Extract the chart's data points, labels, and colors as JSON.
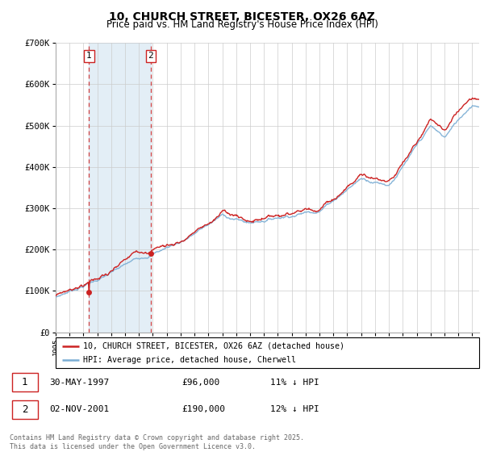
{
  "title1": "10, CHURCH STREET, BICESTER, OX26 6AZ",
  "title2": "Price paid vs. HM Land Registry's House Price Index (HPI)",
  "legend_line1": "10, CHURCH STREET, BICESTER, OX26 6AZ (detached house)",
  "legend_line2": "HPI: Average price, detached house, Cherwell",
  "sale1_date": "30-MAY-1997",
  "sale1_price": "£96,000",
  "sale1_hpi": "11% ↓ HPI",
  "sale1_year": 1997.41,
  "sale1_value": 96000,
  "sale2_date": "02-NOV-2001",
  "sale2_price": "£190,000",
  "sale2_hpi": "12% ↓ HPI",
  "sale2_year": 2001.84,
  "sale2_value": 190000,
  "hpi_color": "#7aadd4",
  "price_color": "#cc2222",
  "footnote": "Contains HM Land Registry data © Crown copyright and database right 2025.\nThis data is licensed under the Open Government Licence v3.0.",
  "ymax": 700000,
  "xmin": 1995,
  "xmax": 2025.5
}
